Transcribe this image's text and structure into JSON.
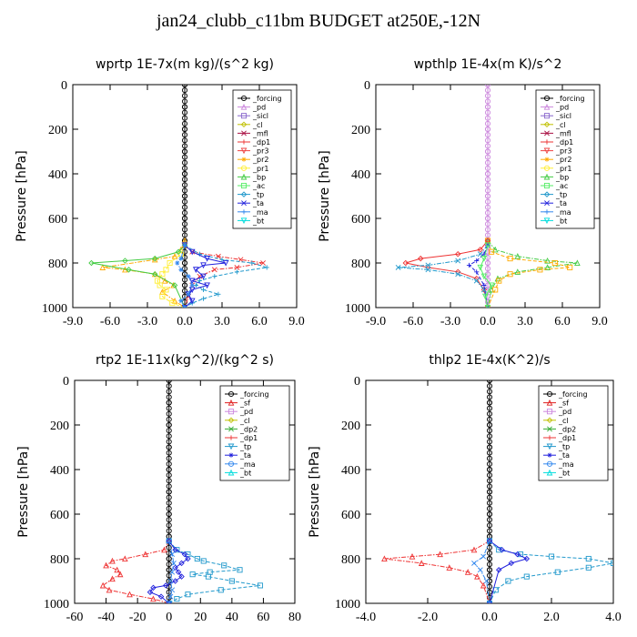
{
  "figure_title": "jan24_clubb_c11bm  BUDGET at250E,-12N",
  "colors": {
    "_forcing": "#000000",
    "_sf": "#e02020",
    "_pd": "#cc88dd",
    "_sicl": "#8866cc",
    "_cl": "#c0c000",
    "_mfl": "#aa1144",
    "_dp1": "#ee3333",
    "_dp2": "#33aa33",
    "_pr3": "#ee4444",
    "_pr2": "#ffaa00",
    "_pr1": "#ffee33",
    "_bp": "#44cc44",
    "_ac": "#55ee66",
    "_tp": "#2299cc",
    "_ta": "#2222dd",
    "_ma": "#3388ee",
    "_bt": "#00dddd"
  },
  "chart_data": [
    {
      "type": "line",
      "title": "wprtp  1E-7x(m kg)/(s^2 kg)",
      "ylabel": "Pressure [hPa]",
      "xlim": [
        -9,
        9
      ],
      "ylim": [
        1000,
        0
      ],
      "xticks": [
        "-9.0",
        "-6.0",
        "-3.0",
        "0.0",
        "3.0",
        "6.0",
        "9.0"
      ],
      "yticks": [
        "0",
        "200",
        "400",
        "600",
        "800",
        "1000"
      ],
      "legend": [
        "_forcing",
        "_pd",
        "_sicl",
        "_cl",
        "_mfl",
        "_dp1",
        "_pr3",
        "_pr2",
        "_pr1",
        "_bp",
        "_ac",
        "_tp",
        "_ta",
        "_ma",
        "_bt"
      ],
      "series": [
        {
          "name": "_forcing",
          "x": [
            0,
            0,
            0,
            0,
            0,
            0,
            0,
            0,
            0,
            0,
            0,
            0
          ],
          "y": [
            0,
            100,
            200,
            300,
            400,
            500,
            600,
            700,
            800,
            850,
            900,
            1000
          ]
        },
        {
          "name": "_pr2",
          "x": [
            0,
            -0.3,
            -0.8,
            -2.4,
            -6.6,
            -4.8,
            -2.4,
            -1.6,
            -0.9,
            -1.8,
            -0.8,
            0
          ],
          "y": [
            700,
            740,
            770,
            785,
            820,
            830,
            850,
            880,
            900,
            930,
            970,
            1000
          ]
        },
        {
          "name": "_pr1",
          "x": [
            0,
            -0.3,
            -1.2,
            -1.5,
            -1.8,
            -2.2,
            -2,
            -1.5,
            -1.8,
            -1,
            0
          ],
          "y": [
            720,
            760,
            800,
            830,
            850,
            880,
            900,
            920,
            950,
            980,
            1000
          ]
        },
        {
          "name": "_bp",
          "x": [
            0,
            -0.5,
            -2.4,
            -4.8,
            -7.5,
            -4.5,
            -2.4,
            -0.8,
            0
          ],
          "y": [
            720,
            750,
            780,
            790,
            800,
            830,
            850,
            900,
            1000
          ]
        },
        {
          "name": "_dp1",
          "x": [
            0,
            0.6,
            2.7,
            4.5,
            6.3,
            4.2,
            2.4,
            1.2,
            0.6,
            0.3,
            0
          ],
          "y": [
            720,
            750,
            770,
            785,
            800,
            820,
            830,
            860,
            900,
            950,
            1000
          ]
        },
        {
          "name": "_tp",
          "x": [
            0,
            1.2,
            3,
            5.4,
            6.6,
            4.2,
            2.4,
            1.2,
            0.9,
            1.5,
            2.7,
            1.5,
            0.6,
            0
          ],
          "y": [
            720,
            760,
            785,
            800,
            820,
            840,
            860,
            880,
            900,
            920,
            940,
            960,
            980,
            1000
          ]
        },
        {
          "name": "_ta",
          "x": [
            0,
            0.6,
            1.8,
            3.3,
            1.5,
            0.9,
            1.5,
            0.6,
            1.8,
            0.6,
            0.3,
            0.6,
            0
          ],
          "y": [
            720,
            750,
            780,
            800,
            810,
            830,
            860,
            880,
            900,
            920,
            940,
            970,
            1000
          ]
        },
        {
          "name": "_ma",
          "x": [
            0,
            -0.3,
            -0.6,
            -0.3,
            0.3,
            0.6,
            0.3,
            -0.3,
            0
          ],
          "y": [
            720,
            780,
            800,
            830,
            860,
            900,
            940,
            970,
            1000
          ]
        }
      ]
    },
    {
      "type": "line",
      "title": "wpthlp  1E-4x(m K)/s^2",
      "ylabel": "Pressure [hPa]",
      "xlim": [
        -9,
        9
      ],
      "ylim": [
        1000,
        0
      ],
      "xticks": [
        "-9.0",
        "-6.0",
        "-3.0",
        "0.0",
        "3.0",
        "6.0",
        "9.0"
      ],
      "yticks": [
        "0",
        "200",
        "400",
        "600",
        "800",
        "1000"
      ],
      "legend": [
        "_forcing",
        "_pd",
        "_sicl",
        "_cl",
        "_mfl",
        "_dp1",
        "_pr3",
        "_pr2",
        "_pr1",
        "_bp",
        "_ac",
        "_tp",
        "_ta",
        "_ma",
        "_bt"
      ],
      "series": [
        {
          "name": "_pd",
          "x": [
            0,
            0,
            0,
            0,
            0,
            0,
            0,
            0,
            0,
            0,
            0,
            0
          ],
          "y": [
            0,
            100,
            200,
            300,
            400,
            500,
            600,
            700,
            800,
            850,
            900,
            1000
          ]
        },
        {
          "name": "_bp",
          "x": [
            0,
            0.6,
            2.4,
            4.8,
            7.2,
            4.8,
            2.4,
            0.8,
            0.3,
            0
          ],
          "y": [
            700,
            740,
            770,
            790,
            800,
            820,
            840,
            870,
            920,
            1000
          ]
        },
        {
          "name": "_pr2",
          "x": [
            0,
            0.3,
            1.8,
            5.4,
            6.6,
            4.2,
            1.8,
            0.9,
            0.6,
            0
          ],
          "y": [
            700,
            750,
            780,
            800,
            820,
            830,
            850,
            880,
            920,
            1000
          ]
        },
        {
          "name": "_dp1",
          "x": [
            0,
            -0.6,
            -2.4,
            -5.4,
            -6.6,
            -4.8,
            -2.4,
            -0.9,
            -0.3,
            0
          ],
          "y": [
            700,
            740,
            760,
            780,
            800,
            820,
            840,
            870,
            920,
            1000
          ]
        },
        {
          "name": "_tp",
          "x": [
            0,
            -0.6,
            -2.4,
            -4.8,
            -7.2,
            -4.8,
            -2.4,
            -0.9,
            -0.3,
            0
          ],
          "y": [
            720,
            760,
            790,
            810,
            820,
            830,
            850,
            880,
            920,
            1000
          ]
        },
        {
          "name": "_ta",
          "x": [
            0,
            -0.3,
            -0.9,
            -1.5,
            -0.9,
            -0.3,
            0
          ],
          "y": [
            720,
            760,
            790,
            810,
            840,
            900,
            1000
          ]
        },
        {
          "name": "_ac",
          "x": [
            0,
            -0.3,
            -0.6,
            -0.3,
            0.3,
            -0.2,
            0
          ],
          "y": [
            720,
            780,
            820,
            860,
            900,
            950,
            1000
          ]
        }
      ]
    },
    {
      "type": "line",
      "title": "rtp2  1E-11x(kg^2)/(kg^2 s)",
      "ylabel": "Pressure [hPa]",
      "xlim": [
        -60,
        80
      ],
      "ylim": [
        1000,
        0
      ],
      "xticks": [
        "-60",
        "-40",
        "-20",
        "0",
        "20",
        "40",
        "60",
        "80"
      ],
      "yticks": [
        "0",
        "200",
        "400",
        "600",
        "800",
        "1000"
      ],
      "legend": [
        "_forcing",
        "_sf",
        "_pd",
        "_cl",
        "_dp2",
        "_dp1",
        "_tp",
        "_ta",
        "_ma",
        "_bt"
      ],
      "series": [
        {
          "name": "_forcing",
          "x": [
            0,
            0,
            0,
            0,
            0,
            0,
            0,
            0,
            0,
            0,
            0,
            0
          ],
          "y": [
            0,
            100,
            200,
            300,
            400,
            500,
            600,
            700,
            800,
            850,
            900,
            1000
          ]
        },
        {
          "name": "_dp1",
          "x": [
            0,
            -3,
            -15,
            -28,
            -36,
            -40,
            -33,
            -31,
            -36,
            -42,
            -38,
            -25,
            -10,
            0
          ],
          "y": [
            720,
            760,
            780,
            800,
            810,
            830,
            850,
            870,
            890,
            920,
            940,
            960,
            980,
            1000
          ]
        },
        {
          "name": "_tp",
          "x": [
            0,
            5,
            12,
            18,
            22,
            35,
            45,
            26,
            15,
            25,
            40,
            58,
            33,
            12,
            5,
            0
          ],
          "y": [
            720,
            760,
            780,
            800,
            810,
            830,
            850,
            860,
            870,
            880,
            900,
            920,
            940,
            960,
            980,
            1000
          ]
        },
        {
          "name": "_ta",
          "x": [
            0,
            4,
            10,
            12,
            8,
            4,
            6,
            8,
            4,
            -2,
            -10,
            -12,
            -5,
            0
          ],
          "y": [
            720,
            760,
            780,
            800,
            820,
            840,
            860,
            880,
            900,
            920,
            930,
            950,
            970,
            1000
          ]
        },
        {
          "name": "_ma",
          "x": [
            0,
            2,
            3,
            2,
            1,
            2,
            1,
            0
          ],
          "y": [
            720,
            780,
            820,
            860,
            900,
            940,
            970,
            1000
          ]
        }
      ]
    },
    {
      "type": "line",
      "title": "thlp2  1E-4x(K^2)/s",
      "ylabel": "Pressure [hPa]",
      "xlim": [
        -4,
        4
      ],
      "ylim": [
        1000,
        0
      ],
      "xticks": [
        "-4.0",
        "-2.0",
        "0.0",
        "2.0",
        "4.0"
      ],
      "yticks": [
        "0",
        "200",
        "400",
        "600",
        "800",
        "1000"
      ],
      "legend": [
        "_forcing",
        "_sf",
        "_pd",
        "_cl",
        "_dp2",
        "_dp1",
        "_tp",
        "_ta",
        "_ma",
        "_bt"
      ],
      "series": [
        {
          "name": "_forcing",
          "x": [
            0,
            0,
            0,
            0,
            0,
            0,
            0,
            0,
            0,
            0,
            0,
            0
          ],
          "y": [
            0,
            100,
            200,
            300,
            400,
            500,
            600,
            700,
            800,
            850,
            900,
            1000
          ]
        },
        {
          "name": "_dp1",
          "x": [
            0,
            -0.5,
            -1.6,
            -2.5,
            -3.4,
            -2.2,
            -1.3,
            -0.7,
            -0.4,
            -0.2,
            0
          ],
          "y": [
            720,
            760,
            780,
            790,
            800,
            820,
            840,
            860,
            880,
            920,
            1000
          ]
        },
        {
          "name": "_tp",
          "x": [
            0,
            0.3,
            1,
            2,
            3.2,
            4,
            3.2,
            2.2,
            1.2,
            0.6,
            0.2,
            0
          ],
          "y": [
            720,
            760,
            780,
            790,
            800,
            820,
            840,
            860,
            880,
            900,
            940,
            1000
          ]
        },
        {
          "name": "_ta",
          "x": [
            0,
            0.4,
            0.9,
            1.2,
            0.7,
            0.3,
            0
          ],
          "y": [
            720,
            760,
            780,
            800,
            820,
            850,
            1000
          ]
        },
        {
          "name": "_ma",
          "x": [
            0,
            -0.2,
            -0.5,
            -0.3,
            -0.1,
            0
          ],
          "y": [
            720,
            790,
            820,
            850,
            900,
            1000
          ]
        }
      ]
    }
  ]
}
